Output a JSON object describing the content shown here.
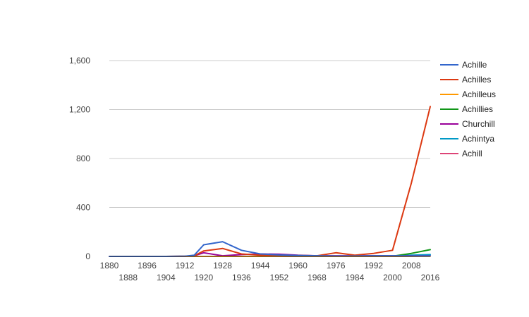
{
  "chart_data": {
    "type": "line",
    "title": "",
    "xlabel": "",
    "ylabel": "",
    "ylim": [
      0,
      1600
    ],
    "yticks": [
      0,
      400,
      800,
      1200,
      1600
    ],
    "ytick_labels": [
      "0",
      "400",
      "800",
      "1,200",
      "1,600"
    ],
    "x": [
      1880,
      1888,
      1896,
      1904,
      1912,
      1916,
      1920,
      1928,
      1936,
      1944,
      1952,
      1960,
      1968,
      1976,
      1984,
      1992,
      2000,
      2008,
      2016
    ],
    "xticks": [
      1880,
      1888,
      1896,
      1904,
      1912,
      1920,
      1928,
      1936,
      1944,
      1952,
      1960,
      1968,
      1976,
      1984,
      1992,
      2000,
      2008,
      2016
    ],
    "xtick_labels": [
      "1880",
      "1888",
      "1896",
      "1904",
      "1912",
      "1920",
      "1928",
      "1936",
      "1944",
      "1952",
      "1960",
      "1968",
      "1976",
      "1984",
      "1992",
      "2000",
      "2008",
      "2016"
    ],
    "grid": true,
    "legend_position": "right",
    "series": [
      {
        "name": "Achille",
        "color": "#3366cc",
        "values": [
          0,
          0,
          0,
          0,
          2,
          10,
          95,
          120,
          50,
          20,
          12,
          8,
          5,
          3,
          3,
          5,
          5,
          5,
          5
        ]
      },
      {
        "name": "Achilles",
        "color": "#dc3912",
        "values": [
          0,
          0,
          0,
          0,
          2,
          5,
          45,
          65,
          20,
          10,
          10,
          8,
          5,
          30,
          10,
          25,
          50,
          600,
          1225
        ]
      },
      {
        "name": "Achilleus",
        "color": "#ff9900",
        "values": [
          0,
          0,
          0,
          0,
          0,
          0,
          0,
          0,
          0,
          0,
          0,
          0,
          0,
          0,
          0,
          0,
          0,
          2,
          2
        ]
      },
      {
        "name": "Achillies",
        "color": "#109618",
        "values": [
          0,
          0,
          0,
          0,
          0,
          0,
          0,
          0,
          0,
          0,
          0,
          0,
          0,
          0,
          0,
          0,
          2,
          25,
          55
        ]
      },
      {
        "name": "Churchill",
        "color": "#990099",
        "values": [
          0,
          0,
          0,
          0,
          0,
          5,
          30,
          5,
          15,
          20,
          18,
          10,
          5,
          5,
          5,
          5,
          5,
          5,
          5
        ]
      },
      {
        "name": "Achintya",
        "color": "#0099c6",
        "values": [
          0,
          0,
          0,
          0,
          0,
          0,
          0,
          0,
          0,
          0,
          0,
          0,
          0,
          0,
          0,
          0,
          2,
          10,
          15
        ]
      },
      {
        "name": "Achill",
        "color": "#dd4477",
        "values": [
          0,
          0,
          0,
          0,
          0,
          0,
          0,
          0,
          0,
          0,
          0,
          0,
          0,
          0,
          0,
          0,
          0,
          2,
          3
        ]
      }
    ]
  }
}
